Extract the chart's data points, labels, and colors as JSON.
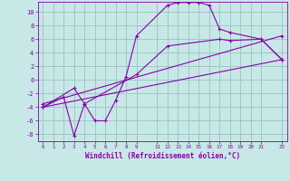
{
  "xlabel": "Windchill (Refroidissement éolien,°C)",
  "bg_color": "#c8e8e8",
  "grid_color": "#a0c8c8",
  "line_color": "#8800aa",
  "xlim": [
    -0.5,
    23.5
  ],
  "ylim": [
    -9,
    11.5
  ],
  "xtick_vals": [
    0,
    1,
    2,
    3,
    4,
    5,
    6,
    7,
    8,
    9,
    11,
    12,
    13,
    14,
    15,
    16,
    17,
    18,
    19,
    20,
    21,
    23
  ],
  "ytick_vals": [
    -8,
    -6,
    -4,
    -2,
    0,
    2,
    4,
    6,
    8,
    10
  ],
  "line1_x": [
    0,
    2,
    3,
    4,
    5,
    6,
    7,
    8,
    9,
    12,
    13,
    14,
    15,
    16,
    17,
    18,
    21,
    23
  ],
  "line1_y": [
    -4,
    -2.5,
    -8.2,
    -3.5,
    -6.0,
    -6.0,
    -3.0,
    0.5,
    6.5,
    11.0,
    11.4,
    11.4,
    11.4,
    11.0,
    7.5,
    7.0,
    6.0,
    3.0
  ],
  "line2_x": [
    0,
    23
  ],
  "line2_y": [
    -4.0,
    3.0
  ],
  "line3_x": [
    0,
    23
  ],
  "line3_y": [
    -3.5,
    6.5
  ],
  "line4_x": [
    0,
    3,
    4,
    9,
    12,
    17,
    18,
    21,
    23
  ],
  "line4_y": [
    -4.0,
    -1.2,
    -3.5,
    0.8,
    5.0,
    6.0,
    5.8,
    6.0,
    3.0
  ]
}
